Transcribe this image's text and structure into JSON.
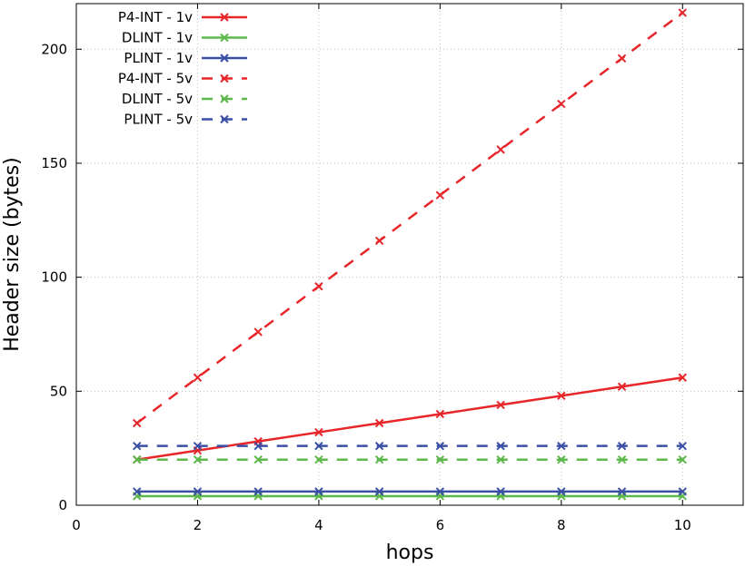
{
  "chart_data": {
    "type": "line",
    "title": "",
    "xlabel": "hops",
    "ylabel": "Header size (bytes)",
    "xlim": [
      0,
      11
    ],
    "ylim": [
      0,
      220
    ],
    "xticks": [
      0,
      2,
      4,
      6,
      8,
      10
    ],
    "yticks": [
      0,
      50,
      100,
      150,
      200
    ],
    "grid": true,
    "legend_position": "top-left",
    "x": [
      1,
      2,
      3,
      4,
      5,
      6,
      7,
      8,
      9,
      10
    ],
    "series": [
      {
        "name": "P4-INT - 1v",
        "color": "#e8262a",
        "style": "solid",
        "values": [
          20,
          24,
          28,
          32,
          36,
          40,
          44,
          48,
          52,
          56
        ]
      },
      {
        "name": "DLINT - 1v",
        "color": "#5cb84a",
        "style": "solid",
        "values": [
          4,
          4,
          4,
          4,
          4,
          4,
          4,
          4,
          4,
          4
        ]
      },
      {
        "name": "PLINT - 1v",
        "color": "#3a4fa5",
        "style": "solid",
        "values": [
          6,
          6,
          6,
          6,
          6,
          6,
          6,
          6,
          6,
          6
        ]
      },
      {
        "name": "P4-INT - 5v",
        "color": "#e8262a",
        "style": "dashed",
        "values": [
          36,
          56,
          76,
          96,
          116,
          136,
          156,
          176,
          196,
          216
        ]
      },
      {
        "name": "DLINT - 5v",
        "color": "#5cb84a",
        "style": "dashed",
        "values": [
          20,
          20,
          20,
          20,
          20,
          20,
          20,
          20,
          20,
          20
        ]
      },
      {
        "name": "PLINT - 5v",
        "color": "#3a4fa5",
        "style": "dashed",
        "values": [
          26,
          26,
          26,
          26,
          26,
          26,
          26,
          26,
          26,
          26
        ]
      }
    ]
  }
}
